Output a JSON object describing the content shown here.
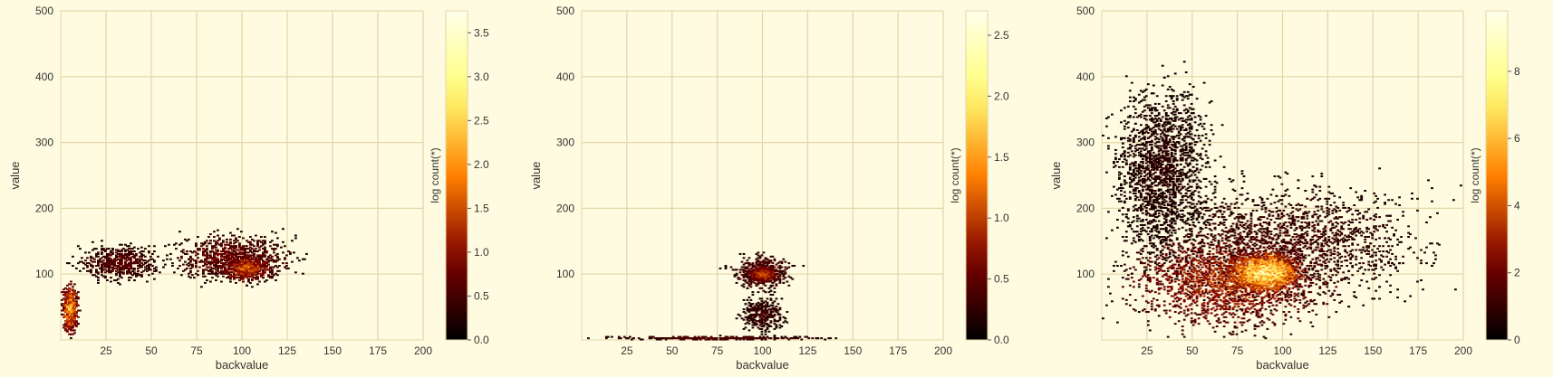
{
  "figure": {
    "background": "#fffbe0",
    "plot_background": "#fffbe0",
    "grid_color": "#e3d6a8",
    "colormap": "afmhot"
  },
  "chart_data": [
    {
      "type": "heatmap",
      "title": "",
      "xlabel": "backvalue",
      "ylabel": "value",
      "xlim": [
        0,
        200
      ],
      "ylim": [
        0,
        500
      ],
      "xticks": [
        25,
        50,
        75,
        100,
        125,
        150,
        175,
        200
      ],
      "yticks": [
        100,
        200,
        300,
        400,
        500
      ],
      "grid": true,
      "colorbar": {
        "label": "log count(*)",
        "min": 0.0,
        "max": 3.75,
        "ticks": [
          "0.0",
          "0.5",
          "1.0",
          "1.5",
          "2.0",
          "2.5",
          "3.0",
          "3.5"
        ],
        "tick_values": [
          0.0,
          0.5,
          1.0,
          1.5,
          2.0,
          2.5,
          3.0,
          3.5
        ]
      },
      "clusters": [
        {
          "x": [
            0,
            10
          ],
          "y": [
            0,
            95
          ],
          "intensity": 2.5
        },
        {
          "x": [
            5,
            60
          ],
          "y": [
            85,
            150
          ],
          "intensity": 0.8
        },
        {
          "x": [
            55,
            135
          ],
          "y": [
            80,
            170
          ],
          "intensity": 1.0
        },
        {
          "x": [
            85,
            120
          ],
          "y": [
            85,
            135
          ],
          "intensity": 1.8
        }
      ]
    },
    {
      "type": "heatmap",
      "title": "",
      "xlabel": "backvalue",
      "ylabel": "value",
      "xlim": [
        0,
        200
      ],
      "ylim": [
        0,
        500
      ],
      "xticks": [
        25,
        50,
        75,
        100,
        125,
        150,
        175,
        200
      ],
      "yticks": [
        100,
        200,
        300,
        400,
        500
      ],
      "grid": true,
      "colorbar": {
        "label": "log count(*)",
        "min": 0.0,
        "max": 2.7,
        "ticks": [
          "0.0",
          "0.5",
          "1.0",
          "1.5",
          "2.0",
          "2.5"
        ],
        "tick_values": [
          0.0,
          0.5,
          1.0,
          1.5,
          2.0,
          2.5
        ]
      },
      "clusters": [
        {
          "x": [
            0,
            150
          ],
          "y": [
            0,
            6
          ],
          "intensity": 0.6
        },
        {
          "x": [
            80,
            120
          ],
          "y": [
            70,
            135
          ],
          "intensity": 0.7
        },
        {
          "x": [
            90,
            110
          ],
          "y": [
            85,
            115
          ],
          "intensity": 1.3
        },
        {
          "x": [
            85,
            115
          ],
          "y": [
            5,
            75
          ],
          "intensity": 0.4
        }
      ]
    },
    {
      "type": "heatmap",
      "title": "",
      "xlabel": "backvalue",
      "ylabel": "value",
      "xlim": [
        0,
        200
      ],
      "ylim": [
        0,
        500
      ],
      "xticks": [
        25,
        50,
        75,
        100,
        125,
        150,
        175,
        200
      ],
      "yticks": [
        100,
        200,
        300,
        400,
        500
      ],
      "grid": true,
      "colorbar": {
        "label": "log count(*)",
        "min": 0,
        "max": 9.8,
        "ticks": [
          "0",
          "2",
          "4",
          "6",
          "8"
        ],
        "tick_values": [
          0,
          2,
          4,
          6,
          8
        ]
      },
      "clusters": [
        {
          "x": [
            0,
            65
          ],
          "y": [
            100,
            420
          ],
          "intensity": 1.0
        },
        {
          "x": [
            0,
            200
          ],
          "y": [
            40,
            260
          ],
          "intensity": 1.5
        },
        {
          "x": [
            0,
            140
          ],
          "y": [
            0,
            180
          ],
          "intensity": 4.0
        },
        {
          "x": [
            65,
            115
          ],
          "y": [
            65,
            140
          ],
          "intensity": 9.0
        }
      ]
    }
  ]
}
